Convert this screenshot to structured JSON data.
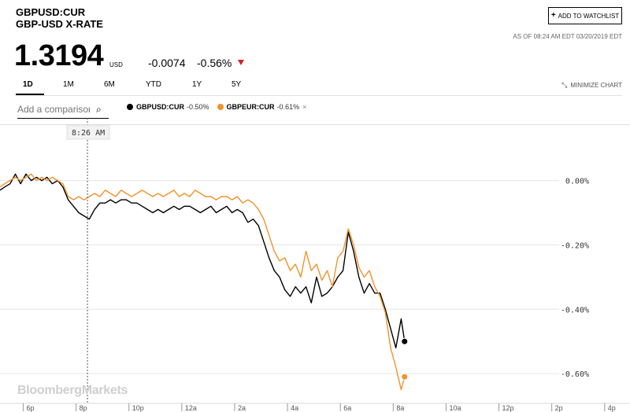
{
  "header": {
    "ticker": "GBPUSD:CUR",
    "subtitle": "GBP-USD X-RATE",
    "price": "1.3194",
    "currency": "USD",
    "change": "-0.0074",
    "change_pct": "-0.56%",
    "down_color": "#d61f26",
    "watchlist_label": "ADD TO WATCHLIST",
    "as_of": "AS OF 08:24 AM EDT 03/20/2019 EDT"
  },
  "tabs": [
    "1D",
    "1M",
    "6M",
    "YTD",
    "1Y",
    "5Y"
  ],
  "active_tab": "1D",
  "minimize_label": "MINIMIZE CHART",
  "compare": {
    "placeholder": "Add a comparison"
  },
  "legend": [
    {
      "name": "GBPUSD:CUR",
      "value": "-0.50%",
      "color": "#000000"
    },
    {
      "name": "GBPEUR:CUR",
      "value": "-0.61%",
      "color": "#f0932b",
      "removable": true
    }
  ],
  "watermark": "BloombergMarkets",
  "chart_data": {
    "type": "line",
    "crosshair_label": "8:26 AM",
    "crosshair_x": 8.43,
    "x_ticks": [
      {
        "x": 6,
        "label": "6p"
      },
      {
        "x": 8,
        "label": "8p"
      },
      {
        "x": 10,
        "label": "10p"
      },
      {
        "x": 12,
        "label": "12a"
      },
      {
        "x": 14,
        "label": "2a"
      },
      {
        "x": 16,
        "label": "4a"
      },
      {
        "x": 18,
        "label": "6a"
      },
      {
        "x": 20,
        "label": "8a"
      },
      {
        "x": 22,
        "label": "10a"
      },
      {
        "x": 24,
        "label": "12p"
      },
      {
        "x": 26,
        "label": "2p"
      },
      {
        "x": 28,
        "label": "4p"
      }
    ],
    "y_ticks": [
      {
        "y": 0,
        "label": "0.00%"
      },
      {
        "y": -0.2,
        "label": "-0.20%"
      },
      {
        "y": -0.4,
        "label": "-0.40%"
      },
      {
        "y": -0.6,
        "label": "-0.60%"
      }
    ],
    "ylim": [
      -0.69,
      0.17
    ],
    "xlim": [
      5.12,
      28.96
    ],
    "series": [
      {
        "name": "GBPUSD:CUR",
        "color": "#000000",
        "x": [
          5.12,
          5.3,
          5.5,
          5.7,
          5.9,
          6.1,
          6.3,
          6.5,
          6.7,
          6.9,
          7.1,
          7.3,
          7.5,
          7.7,
          7.9,
          8.1,
          8.3,
          8.5,
          8.7,
          8.9,
          9.1,
          9.3,
          9.5,
          9.7,
          9.9,
          10.1,
          10.3,
          10.5,
          10.7,
          10.9,
          11.1,
          11.3,
          11.5,
          11.7,
          11.9,
          12.1,
          12.3,
          12.5,
          12.7,
          12.9,
          13.1,
          13.3,
          13.5,
          13.7,
          13.9,
          14.1,
          14.3,
          14.5,
          14.7,
          14.9,
          15.1,
          15.3,
          15.5,
          15.7,
          15.9,
          16.1,
          16.3,
          16.5,
          16.7,
          16.9,
          17.1,
          17.3,
          17.5,
          17.7,
          17.9,
          18.1,
          18.3,
          18.5,
          18.7,
          18.9,
          19.1,
          19.3,
          19.5,
          19.7,
          19.9,
          20.1,
          20.3,
          20.43
        ],
        "values": [
          -0.03,
          -0.02,
          -0.01,
          0.02,
          -0.01,
          0.02,
          0.0,
          0.01,
          0.0,
          0.01,
          -0.01,
          0.0,
          -0.02,
          -0.06,
          -0.08,
          -0.1,
          -0.11,
          -0.12,
          -0.09,
          -0.07,
          -0.07,
          -0.06,
          -0.07,
          -0.06,
          -0.06,
          -0.07,
          -0.07,
          -0.08,
          -0.09,
          -0.1,
          -0.09,
          -0.1,
          -0.09,
          -0.08,
          -0.09,
          -0.08,
          -0.08,
          -0.09,
          -0.1,
          -0.09,
          -0.08,
          -0.1,
          -0.09,
          -0.08,
          -0.1,
          -0.09,
          -0.1,
          -0.13,
          -0.12,
          -0.14,
          -0.19,
          -0.24,
          -0.28,
          -0.3,
          -0.34,
          -0.36,
          -0.33,
          -0.35,
          -0.33,
          -0.38,
          -0.3,
          -0.36,
          -0.35,
          -0.33,
          -0.3,
          -0.28,
          -0.16,
          -0.22,
          -0.3,
          -0.35,
          -0.32,
          -0.35,
          -0.35,
          -0.4,
          -0.46,
          -0.52,
          -0.43,
          -0.5
        ]
      },
      {
        "name": "GBPEUR:CUR",
        "color": "#f0932b",
        "x": [
          5.12,
          5.3,
          5.5,
          5.7,
          5.9,
          6.1,
          6.3,
          6.5,
          6.7,
          6.9,
          7.1,
          7.3,
          7.5,
          7.7,
          7.9,
          8.1,
          8.3,
          8.5,
          8.7,
          8.9,
          9.1,
          9.3,
          9.5,
          9.7,
          9.9,
          10.1,
          10.3,
          10.5,
          10.7,
          10.9,
          11.1,
          11.3,
          11.5,
          11.7,
          11.9,
          12.1,
          12.3,
          12.5,
          12.7,
          12.9,
          13.1,
          13.3,
          13.5,
          13.7,
          13.9,
          14.1,
          14.3,
          14.5,
          14.7,
          14.9,
          15.1,
          15.3,
          15.5,
          15.7,
          15.9,
          16.1,
          16.3,
          16.5,
          16.7,
          16.9,
          17.1,
          17.3,
          17.5,
          17.7,
          17.9,
          18.1,
          18.3,
          18.5,
          18.7,
          18.9,
          19.1,
          19.3,
          19.5,
          19.7,
          19.9,
          20.1,
          20.3,
          20.43
        ],
        "values": [
          -0.02,
          -0.01,
          0.0,
          0.01,
          0.0,
          0.01,
          0.02,
          0.0,
          0.01,
          0.0,
          0.01,
          0.0,
          -0.01,
          -0.05,
          -0.06,
          -0.05,
          -0.06,
          -0.05,
          -0.04,
          -0.05,
          -0.03,
          -0.04,
          -0.05,
          -0.03,
          -0.04,
          -0.05,
          -0.04,
          -0.03,
          -0.04,
          -0.05,
          -0.04,
          -0.05,
          -0.04,
          -0.03,
          -0.05,
          -0.04,
          -0.05,
          -0.03,
          -0.04,
          -0.05,
          -0.05,
          -0.06,
          -0.05,
          -0.05,
          -0.06,
          -0.05,
          -0.07,
          -0.06,
          -0.07,
          -0.09,
          -0.12,
          -0.17,
          -0.22,
          -0.25,
          -0.24,
          -0.28,
          -0.26,
          -0.3,
          -0.22,
          -0.28,
          -0.26,
          -0.31,
          -0.28,
          -0.33,
          -0.24,
          -0.22,
          -0.15,
          -0.2,
          -0.27,
          -0.3,
          -0.28,
          -0.33,
          -0.36,
          -0.41,
          -0.52,
          -0.58,
          -0.65,
          -0.61
        ]
      }
    ]
  }
}
